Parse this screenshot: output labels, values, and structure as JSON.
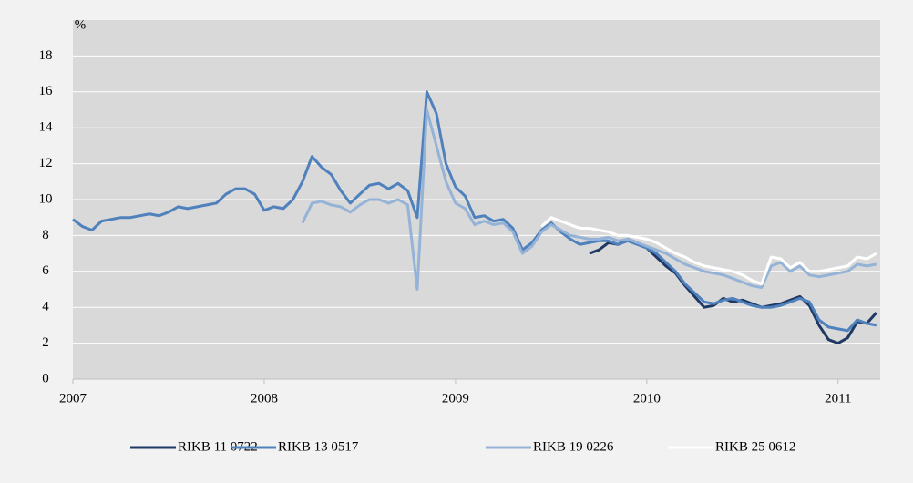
{
  "chart_data": {
    "type": "line",
    "y_unit_label": "%",
    "x": [
      2007,
      2007.05,
      2007.1,
      2007.15,
      2007.2,
      2007.25,
      2007.3,
      2007.35,
      2007.4,
      2007.45,
      2007.5,
      2007.55,
      2007.6,
      2007.65,
      2007.7,
      2007.75,
      2007.8,
      2007.85,
      2007.9,
      2007.95,
      2008,
      2008.05,
      2008.1,
      2008.15,
      2008.2,
      2008.25,
      2008.3,
      2008.35,
      2008.4,
      2008.45,
      2008.5,
      2008.55,
      2008.6,
      2008.65,
      2008.7,
      2008.75,
      2008.8,
      2008.85,
      2008.9,
      2008.95,
      2009,
      2009.05,
      2009.1,
      2009.15,
      2009.2,
      2009.25,
      2009.3,
      2009.35,
      2009.4,
      2009.45,
      2009.5,
      2009.55,
      2009.6,
      2009.65,
      2009.7,
      2009.75,
      2009.8,
      2009.85,
      2009.9,
      2009.95,
      2010,
      2010.05,
      2010.1,
      2010.15,
      2010.2,
      2010.25,
      2010.3,
      2010.35,
      2010.4,
      2010.45,
      2010.5,
      2010.55,
      2010.6,
      2010.65,
      2010.7,
      2010.75,
      2010.8,
      2010.85,
      2010.9,
      2010.95,
      2011,
      2011.05,
      2011.1,
      2011.15,
      2011.2
    ],
    "series": [
      {
        "name": "RIKB 11 0722",
        "color": "#1f3864",
        "values": [
          null,
          null,
          null,
          null,
          null,
          null,
          null,
          null,
          null,
          null,
          null,
          null,
          null,
          null,
          null,
          null,
          null,
          null,
          null,
          null,
          null,
          null,
          null,
          null,
          null,
          null,
          null,
          null,
          null,
          null,
          null,
          null,
          null,
          null,
          null,
          null,
          null,
          null,
          null,
          null,
          null,
          null,
          null,
          null,
          null,
          null,
          null,
          null,
          null,
          null,
          null,
          null,
          null,
          null,
          7.0,
          7.2,
          7.6,
          7.5,
          7.8,
          7.6,
          7.3,
          6.8,
          6.3,
          5.9,
          5.2,
          4.6,
          4.0,
          4.1,
          4.5,
          4.3,
          4.4,
          4.2,
          4.0,
          4.1,
          4.2,
          4.4,
          4.6,
          4.1,
          3.0,
          2.2,
          2.0,
          2.3,
          3.2,
          3.1,
          3.7
        ]
      },
      {
        "name": "RIKB 13 0517",
        "color": "#4f81bd",
        "values": [
          8.9,
          8.5,
          8.3,
          8.8,
          8.9,
          9.0,
          9.0,
          9.1,
          9.2,
          9.1,
          9.3,
          9.6,
          9.5,
          9.6,
          9.7,
          9.8,
          10.3,
          10.6,
          10.6,
          10.3,
          9.4,
          9.6,
          9.5,
          10.0,
          11.0,
          12.4,
          11.8,
          11.4,
          10.5,
          9.8,
          10.3,
          10.8,
          10.9,
          10.6,
          10.9,
          10.5,
          9.0,
          16.0,
          14.8,
          12.0,
          10.7,
          10.2,
          9.0,
          9.1,
          8.8,
          8.9,
          8.4,
          7.2,
          7.6,
          8.3,
          8.7,
          8.2,
          7.8,
          7.5,
          7.6,
          7.7,
          7.7,
          7.5,
          7.7,
          7.5,
          7.3,
          7.0,
          6.5,
          6.0,
          5.3,
          4.8,
          4.3,
          4.2,
          4.4,
          4.5,
          4.3,
          4.1,
          4.0,
          4.0,
          4.1,
          4.3,
          4.5,
          4.3,
          3.3,
          2.9,
          2.8,
          2.7,
          3.3,
          3.1,
          3.0
        ]
      },
      {
        "name": "RIKB 19 0226",
        "color": "#95b3d7",
        "values": [
          null,
          null,
          null,
          null,
          null,
          null,
          null,
          null,
          null,
          null,
          null,
          null,
          null,
          null,
          null,
          null,
          null,
          null,
          null,
          null,
          null,
          null,
          null,
          null,
          8.7,
          9.8,
          9.9,
          9.7,
          9.6,
          9.3,
          9.7,
          10.0,
          10.0,
          9.8,
          10.0,
          9.7,
          5.0,
          15.0,
          13.0,
          11.0,
          9.8,
          9.5,
          8.6,
          8.8,
          8.6,
          8.7,
          8.2,
          7.0,
          7.4,
          8.2,
          8.6,
          8.3,
          8.0,
          7.9,
          7.8,
          7.8,
          7.9,
          7.7,
          7.8,
          7.6,
          7.4,
          7.2,
          7.0,
          6.7,
          6.4,
          6.2,
          6.0,
          5.9,
          5.8,
          5.6,
          5.4,
          5.2,
          5.1,
          6.3,
          6.5,
          6.0,
          6.3,
          5.8,
          5.7,
          5.8,
          5.9,
          6.0,
          6.4,
          6.3,
          6.4
        ]
      },
      {
        "name": "RIKB 25 0612",
        "color": "#ffffff",
        "values": [
          null,
          null,
          null,
          null,
          null,
          null,
          null,
          null,
          null,
          null,
          null,
          null,
          null,
          null,
          null,
          null,
          null,
          null,
          null,
          null,
          null,
          null,
          null,
          null,
          null,
          null,
          null,
          null,
          null,
          null,
          null,
          null,
          null,
          null,
          null,
          null,
          null,
          null,
          null,
          null,
          null,
          null,
          null,
          null,
          null,
          null,
          null,
          null,
          null,
          8.5,
          9.0,
          8.8,
          8.6,
          8.4,
          8.4,
          8.3,
          8.2,
          8.0,
          8.0,
          7.9,
          7.8,
          7.6,
          7.3,
          7.0,
          6.8,
          6.5,
          6.3,
          6.2,
          6.1,
          6.0,
          5.8,
          5.5,
          5.3,
          6.8,
          6.7,
          6.2,
          6.5,
          6.0,
          6.0,
          6.1,
          6.2,
          6.3,
          6.8,
          6.7,
          7.0
        ]
      }
    ],
    "xlim": [
      2007,
      2011.22
    ],
    "xticks": [
      2007,
      2008,
      2009,
      2010,
      2011
    ],
    "ylim": [
      0,
      20
    ],
    "yticks": [
      0,
      2,
      4,
      6,
      8,
      10,
      12,
      14,
      16,
      18
    ],
    "grid": true,
    "legend": "bottom"
  }
}
